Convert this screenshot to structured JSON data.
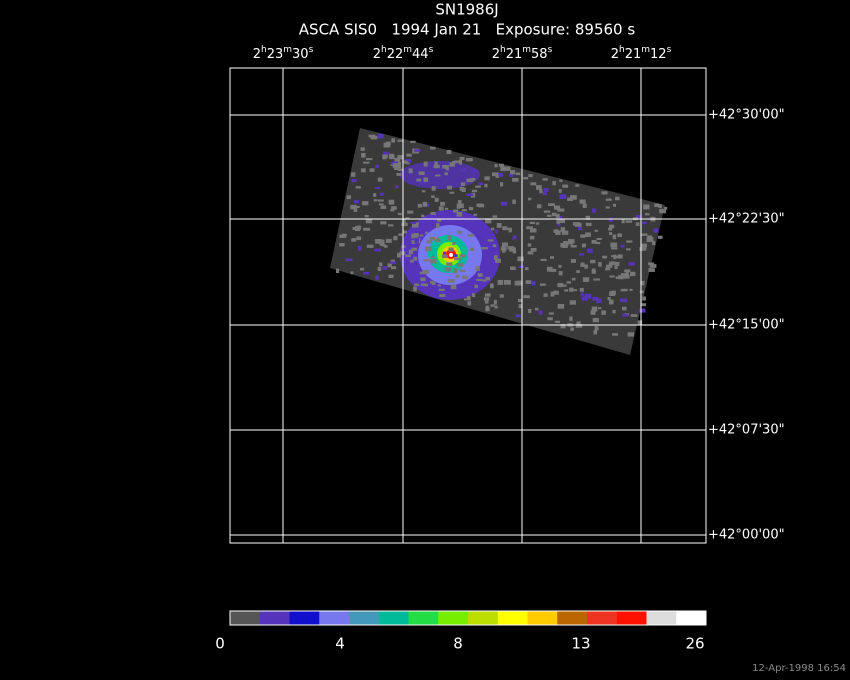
{
  "header": {
    "title": "SN1986J",
    "subtitle": "ASCA SIS0   1994 Jan 21   Exposure: 89560 s"
  },
  "ra_ticks": [
    [
      "2",
      "h",
      "23",
      "m",
      "30",
      "s"
    ],
    [
      "2",
      "h",
      "22",
      "m",
      "44",
      "s"
    ],
    [
      "2",
      "h",
      "21",
      "m",
      "58",
      "s"
    ],
    [
      "2",
      "h",
      "21",
      "m",
      "12",
      "s"
    ]
  ],
  "dec_ticks": [
    "+42°30'00\"",
    "+42°22'30\"",
    "+42°15'00\"",
    "+42°07'30\"",
    "+42°00'00\""
  ],
  "colorbar": {
    "colors": [
      "#555555",
      "#5533bb",
      "#1010cc",
      "#7777ee",
      "#4499bb",
      "#00bb99",
      "#22dd44",
      "#77ee00",
      "#bbdd00",
      "#ffff00",
      "#ffcc00",
      "#bb6600",
      "#ee3322",
      "#ff1100",
      "#dddddd",
      "#ffffff"
    ],
    "labels": [
      "0",
      "4",
      "8",
      "13",
      "26"
    ]
  },
  "timestamp": "12-Apr-1998 16:54"
}
